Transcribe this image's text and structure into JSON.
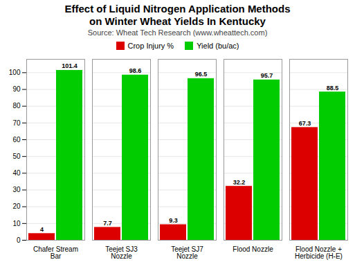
{
  "chart_data": {
    "type": "bar",
    "title": "Effect of Liquid Nitrogen Application Methods\non Winter Wheat Yields In Kentucky",
    "subtitle": "Source: Wheat Tech Research (www.wheattech.com)",
    "categories": [
      "Chafer Stream\nBar",
      "Teejet SJ3\nNozzle",
      "Teejet SJ7\nNozzle",
      "Flood Nozzle",
      "Flood Nozzle +\nHerbicide (H-E)"
    ],
    "series": [
      {
        "name": "Crop Injury %",
        "color": "#dd0000",
        "values": [
          4,
          7.7,
          9.3,
          32.2,
          67.3
        ]
      },
      {
        "name": "Yield (bu/ac)",
        "color": "#00cc00",
        "values": [
          101.4,
          98.6,
          96.5,
          95.7,
          88.5
        ]
      }
    ],
    "ylim": [
      0,
      108
    ],
    "yticks": [
      0,
      10,
      20,
      30,
      40,
      50,
      60,
      70,
      80,
      90,
      100
    ],
    "grid": true,
    "legend": "top",
    "data_labels": true
  }
}
